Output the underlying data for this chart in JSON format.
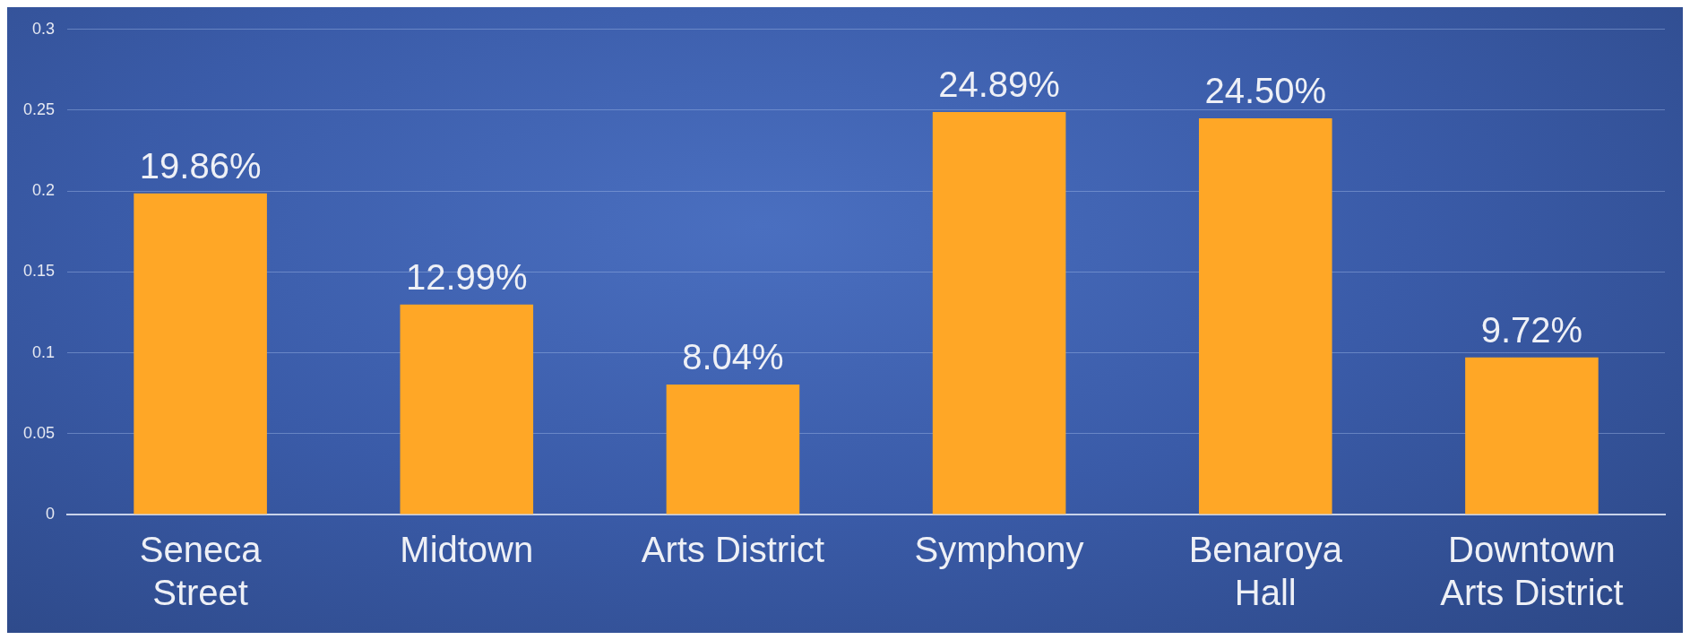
{
  "chart_data": {
    "type": "bar",
    "categories": [
      "Seneca Street",
      "Midtown",
      "Arts District",
      "Symphony",
      "Benaroya Hall",
      "Downtown Arts District"
    ],
    "values": [
      0.1986,
      0.1299,
      0.0804,
      0.2489,
      0.245,
      0.0972
    ],
    "value_labels": [
      "19.86%",
      "12.99%",
      "8.04%",
      "24.89%",
      "24.50%",
      "9.72%"
    ],
    "color": "#ffa726",
    "ylim": [
      0,
      0.3
    ],
    "yticks": [
      0,
      0.05,
      0.1,
      0.15,
      0.2,
      0.25,
      0.3
    ],
    "grid": "y"
  }
}
